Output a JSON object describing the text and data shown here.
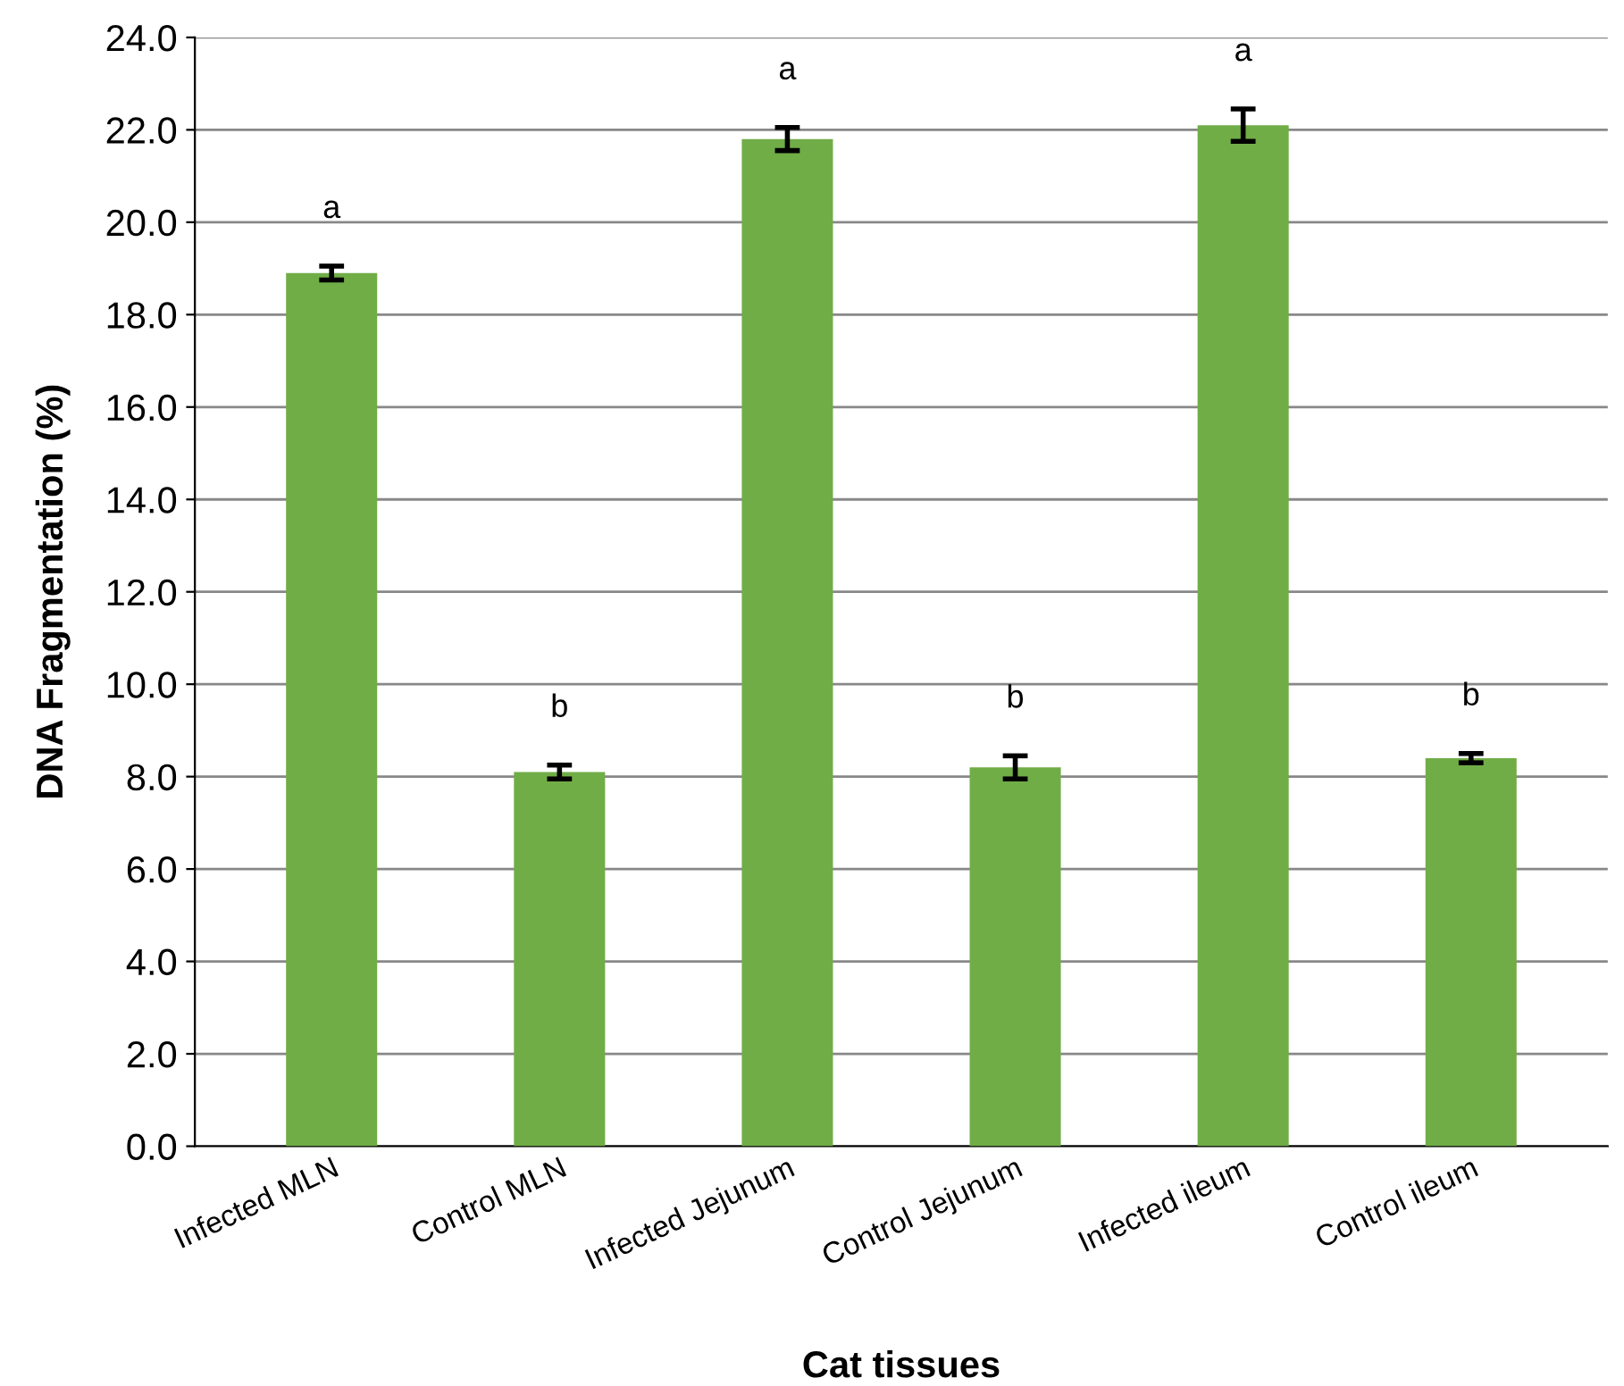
{
  "chart_data": {
    "type": "bar",
    "xlabel": "Cat tissues",
    "ylabel": "DNA Fragmentation (%)",
    "categories": [
      "Infected MLN",
      "Control MLN",
      "Infected Jejunum",
      "Control Jejunum",
      "Infected ileum",
      "Control ileum"
    ],
    "values": [
      18.9,
      8.1,
      21.8,
      8.2,
      22.1,
      8.4
    ],
    "errors": [
      0.15,
      0.15,
      0.25,
      0.25,
      0.35,
      0.1
    ],
    "color": "#70ad47",
    "value_labels": [
      "a",
      "b",
      "a",
      "b",
      "a",
      "b"
    ],
    "ylim": [
      0,
      24
    ],
    "yticks": [
      {
        "value": 0,
        "label": "0.0"
      },
      {
        "value": 2,
        "label": "2.0"
      },
      {
        "value": 4,
        "label": "4.0"
      },
      {
        "value": 6,
        "label": "6.0"
      },
      {
        "value": 8,
        "label": "8.0"
      },
      {
        "value": 10,
        "label": "10.0"
      },
      {
        "value": 12,
        "label": "12.0"
      },
      {
        "value": 14,
        "label": "14.0"
      },
      {
        "value": 16,
        "label": "16.0"
      },
      {
        "value": 18,
        "label": "18.0"
      },
      {
        "value": 20,
        "label": "20.0"
      },
      {
        "value": 22,
        "label": "22.0"
      },
      {
        "value": 24,
        "label": "24.0"
      }
    ],
    "grid": "y"
  }
}
